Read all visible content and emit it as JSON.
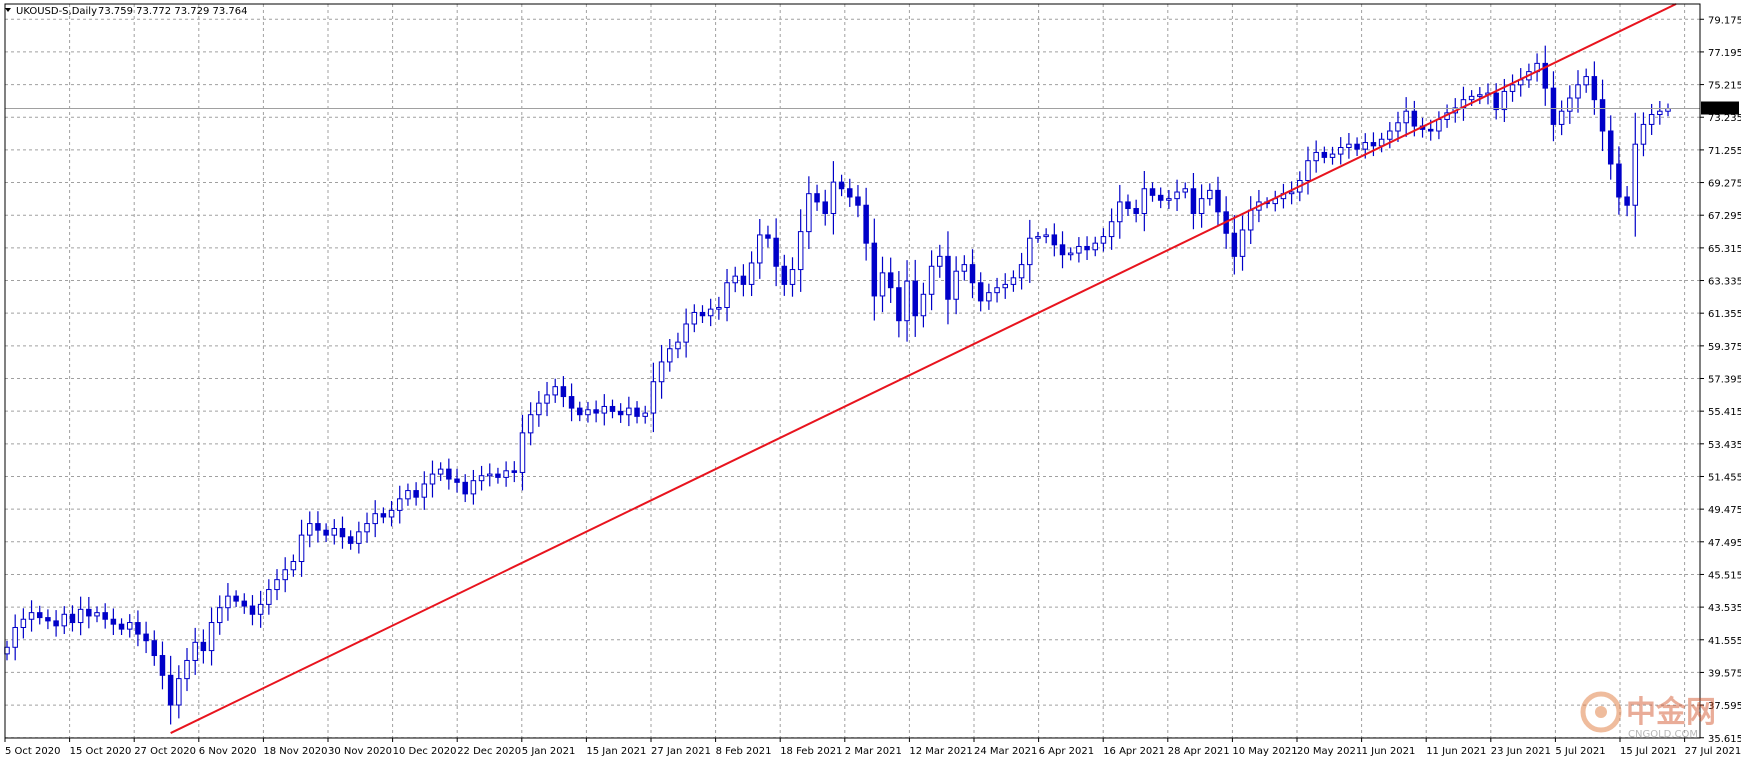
{
  "header": {
    "symbol": "UKOUSD-S,Daily",
    "ohlc": "73.759 73.772 73.729 73.764"
  },
  "watermark": {
    "name": "中金网",
    "url": "CNGOLD.COM"
  },
  "colors": {
    "candle": "#0000c8",
    "trendline": "#e8141e",
    "grid": "#a0a0a0",
    "price_line": "#a0a0a0",
    "price_badge_bg": "#000000",
    "price_badge_text": "#ffffff"
  },
  "chart_data": {
    "type": "candlestick",
    "grid": true,
    "ylim": [
      35.6,
      80.1
    ],
    "y_ticks": [
      "79.175",
      "77.195",
      "75.215",
      "73.235",
      "71.255",
      "69.275",
      "67.295",
      "65.315",
      "63.335",
      "61.355",
      "59.375",
      "57.395",
      "55.415",
      "53.435",
      "51.455",
      "49.475",
      "47.495",
      "45.515",
      "43.535",
      "41.555",
      "39.575",
      "37.595",
      "35.615"
    ],
    "x_ticks": [
      "5 Oct 2020",
      "15 Oct 2020",
      "27 Oct 2020",
      "6 Nov 2020",
      "18 Nov 2020",
      "30 Nov 2020",
      "10 Dec 2020",
      "22 Dec 2020",
      "5 Jan 2021",
      "15 Jan 2021",
      "27 Jan 2021",
      "8 Feb 2021",
      "18 Feb 2021",
      "2 Mar 2021",
      "12 Mar 2021",
      "24 Mar 2021",
      "6 Apr 2021",
      "16 Apr 2021",
      "28 Apr 2021",
      "10 May 2021",
      "20 May 2021",
      "1 Jun 2021",
      "11 Jun 2021",
      "23 Jun 2021",
      "5 Jul 2021",
      "15 Jul 2021",
      "27 Jul 2021"
    ],
    "current_price": "73.764",
    "close_series": [
      41.1,
      42.3,
      42.8,
      43.2,
      42.9,
      42.7,
      42.4,
      43.1,
      42.6,
      43.4,
      43.0,
      43.2,
      42.8,
      42.5,
      42.2,
      42.6,
      41.9,
      41.5,
      40.6,
      39.4,
      37.6,
      39.2,
      40.3,
      41.4,
      40.9,
      42.6,
      43.5,
      44.2,
      43.9,
      43.6,
      43.1,
      43.7,
      44.6,
      45.2,
      45.8,
      46.3,
      47.9,
      48.6,
      48.2,
      47.9,
      48.3,
      47.8,
      47.4,
      48.1,
      48.6,
      49.2,
      49.0,
      49.4,
      50.1,
      50.6,
      50.2,
      51.0,
      51.6,
      51.9,
      51.3,
      51.1,
      50.4,
      51.2,
      51.5,
      51.6,
      51.4,
      51.8,
      51.7,
      54.1,
      55.2,
      55.9,
      56.4,
      56.9,
      56.3,
      55.6,
      55.2,
      55.5,
      55.3,
      55.7,
      55.4,
      55.2,
      55.6,
      55.1,
      55.3,
      57.2,
      58.4,
      59.2,
      59.6,
      60.7,
      61.4,
      61.2,
      61.6,
      61.7,
      63.2,
      63.6,
      63.1,
      64.4,
      66.1,
      65.9,
      64.2,
      63.1,
      64.0,
      66.3,
      68.6,
      68.1,
      67.4,
      69.3,
      68.9,
      68.4,
      67.9,
      65.6,
      62.4,
      63.8,
      62.9,
      60.9,
      63.3,
      61.2,
      62.5,
      64.2,
      64.8,
      62.2,
      63.9,
      64.3,
      63.2,
      62.1,
      62.6,
      62.9,
      63.1,
      63.5,
      64.3,
      65.9,
      66.0,
      66.1,
      65.5,
      64.9,
      65.0,
      65.4,
      65.2,
      65.6,
      66.0,
      66.9,
      68.1,
      67.7,
      67.4,
      68.9,
      68.5,
      68.2,
      68.3,
      68.7,
      68.9,
      67.4,
      68.3,
      68.8,
      67.5,
      66.2,
      64.8,
      66.4,
      67.6,
      68.1,
      68.0,
      68.3,
      68.6,
      68.7,
      69.4,
      70.6,
      71.1,
      70.8,
      71.0,
      71.4,
      71.6,
      71.3,
      71.7,
      71.5,
      71.9,
      72.4,
      72.9,
      73.6,
      72.7,
      72.5,
      72.4,
      73.1,
      73.5,
      73.8,
      74.3,
      74.5,
      74.6,
      74.7,
      73.7,
      74.8,
      75.2,
      75.5,
      76.0,
      76.5,
      75.0,
      72.8,
      73.6,
      74.4,
      75.2,
      75.7,
      74.3,
      72.4,
      70.4,
      68.4,
      67.9,
      71.6,
      72.8,
      73.4,
      73.6,
      73.76
    ]
  }
}
